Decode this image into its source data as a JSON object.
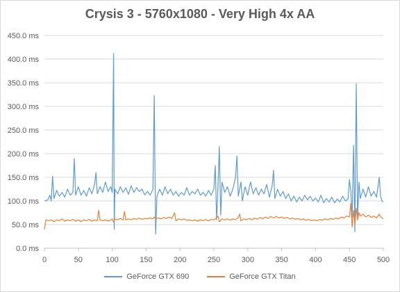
{
  "chart_data": {
    "type": "line",
    "title": "Crysis 3 - 5760x1080 - Very High 4x AA",
    "xlabel": "",
    "ylabel": "",
    "xlim": [
      0,
      500
    ],
    "ylim": [
      0,
      450
    ],
    "x_ticks": [
      0,
      50,
      100,
      150,
      200,
      250,
      300,
      350,
      400,
      450,
      500
    ],
    "y_ticks": [
      0,
      50,
      100,
      150,
      200,
      250,
      300,
      350,
      400,
      450
    ],
    "y_tick_labels": [
      "0.0 ms",
      "50.0 ms",
      "100.0 ms",
      "150.0 ms",
      "200.0 ms",
      "250.0 ms",
      "300.0 ms",
      "350.0 ms",
      "400.0 ms",
      "450.0 ms"
    ],
    "grid": "horizontal",
    "legend_position": "bottom",
    "series": [
      {
        "name": "GeForce GTX 690",
        "color": "#5b9bd5",
        "points": [
          [
            0,
            100
          ],
          [
            5,
            102
          ],
          [
            8,
            112
          ],
          [
            10,
            100
          ],
          [
            12,
            152
          ],
          [
            14,
            105
          ],
          [
            18,
            122
          ],
          [
            22,
            110
          ],
          [
            26,
            118
          ],
          [
            30,
            108
          ],
          [
            34,
            125
          ],
          [
            38,
            112
          ],
          [
            42,
            118
          ],
          [
            44,
            190
          ],
          [
            46,
            112
          ],
          [
            50,
            130
          ],
          [
            54,
            112
          ],
          [
            58,
            122
          ],
          [
            62,
            110
          ],
          [
            66,
            128
          ],
          [
            70,
            115
          ],
          [
            74,
            135
          ],
          [
            76,
            160
          ],
          [
            78,
            115
          ],
          [
            82,
            130
          ],
          [
            86,
            118
          ],
          [
            90,
            140
          ],
          [
            94,
            120
          ],
          [
            98,
            130
          ],
          [
            100,
            118
          ],
          [
            102,
            412
          ],
          [
            103,
            40
          ],
          [
            104,
            125
          ],
          [
            108,
            115
          ],
          [
            112,
            130
          ],
          [
            116,
            118
          ],
          [
            120,
            128
          ],
          [
            124,
            114
          ],
          [
            128,
            132
          ],
          [
            132,
            118
          ],
          [
            136,
            128
          ],
          [
            140,
            120
          ],
          [
            144,
            125
          ],
          [
            148,
            113
          ],
          [
            152,
            120
          ],
          [
            156,
            112
          ],
          [
            160,
            125
          ],
          [
            162,
            323
          ],
          [
            164,
            30
          ],
          [
            166,
            110
          ],
          [
            170,
            125
          ],
          [
            174,
            112
          ],
          [
            178,
            130
          ],
          [
            182,
            115
          ],
          [
            186,
            125
          ],
          [
            190,
            112
          ],
          [
            194,
            120
          ],
          [
            198,
            110
          ],
          [
            202,
            118
          ],
          [
            206,
            112
          ],
          [
            210,
            128
          ],
          [
            214,
            112
          ],
          [
            218,
            120
          ],
          [
            222,
            115
          ],
          [
            226,
            125
          ],
          [
            230,
            112
          ],
          [
            234,
            118
          ],
          [
            238,
            110
          ],
          [
            242,
            122
          ],
          [
            246,
            112
          ],
          [
            250,
            125
          ],
          [
            252,
            175
          ],
          [
            254,
            60
          ],
          [
            256,
            130
          ],
          [
            258,
            215
          ],
          [
            260,
            70
          ],
          [
            262,
            140
          ],
          [
            266,
            118
          ],
          [
            270,
            130
          ],
          [
            274,
            110
          ],
          [
            278,
            125
          ],
          [
            282,
            150
          ],
          [
            284,
            195
          ],
          [
            286,
            110
          ],
          [
            290,
            140
          ],
          [
            292,
            100
          ],
          [
            296,
            130
          ],
          [
            300,
            112
          ],
          [
            304,
            140
          ],
          [
            308,
            115
          ],
          [
            312,
            128
          ],
          [
            316,
            112
          ],
          [
            320,
            125
          ],
          [
            324,
            115
          ],
          [
            328,
            135
          ],
          [
            332,
            108
          ],
          [
            336,
            132
          ],
          [
            338,
            165
          ],
          [
            340,
            105
          ],
          [
            344,
            125
          ],
          [
            348,
            110
          ],
          [
            352,
            120
          ],
          [
            356,
            105
          ],
          [
            360,
            115
          ],
          [
            364,
            100
          ],
          [
            368,
            110
          ],
          [
            372,
            98
          ],
          [
            376,
            108
          ],
          [
            380,
            100
          ],
          [
            384,
            112
          ],
          [
            388,
            102
          ],
          [
            392,
            110
          ],
          [
            396,
            100
          ],
          [
            400,
            106
          ],
          [
            404,
            98
          ],
          [
            408,
            112
          ],
          [
            412,
            96
          ],
          [
            416,
            105
          ],
          [
            420,
            98
          ],
          [
            424,
            108
          ],
          [
            428,
            96
          ],
          [
            432,
            104
          ],
          [
            436,
            98
          ],
          [
            440,
            110
          ],
          [
            444,
            100
          ],
          [
            448,
            104
          ],
          [
            450,
            145
          ],
          [
            452,
            120
          ],
          [
            454,
            65
          ],
          [
            456,
            218
          ],
          [
            458,
            35
          ],
          [
            460,
            348
          ],
          [
            462,
            60
          ],
          [
            464,
            140
          ],
          [
            466,
            105
          ],
          [
            470,
            125
          ],
          [
            474,
            108
          ],
          [
            478,
            130
          ],
          [
            482,
            110
          ],
          [
            486,
            120
          ],
          [
            490,
            108
          ],
          [
            494,
            150
          ],
          [
            496,
            110
          ],
          [
            498,
            100
          ],
          [
            500,
            98
          ]
        ]
      },
      {
        "name": "GeForce GTX Titan",
        "color": "#ed7d31",
        "points": [
          [
            0,
            40
          ],
          [
            2,
            60
          ],
          [
            6,
            58
          ],
          [
            10,
            60
          ],
          [
            14,
            56
          ],
          [
            18,
            60
          ],
          [
            22,
            58
          ],
          [
            26,
            62
          ],
          [
            30,
            57
          ],
          [
            34,
            60
          ],
          [
            38,
            58
          ],
          [
            42,
            61
          ],
          [
            46,
            57
          ],
          [
            50,
            60
          ],
          [
            54,
            56
          ],
          [
            58,
            60
          ],
          [
            62,
            58
          ],
          [
            66,
            61
          ],
          [
            70,
            57
          ],
          [
            74,
            60
          ],
          [
            78,
            58
          ],
          [
            80,
            80
          ],
          [
            82,
            60
          ],
          [
            86,
            58
          ],
          [
            90,
            60
          ],
          [
            94,
            57
          ],
          [
            98,
            60
          ],
          [
            100,
            62
          ],
          [
            102,
            55
          ],
          [
            104,
            62
          ],
          [
            108,
            60
          ],
          [
            112,
            63
          ],
          [
            116,
            60
          ],
          [
            118,
            78
          ],
          [
            120,
            60
          ],
          [
            124,
            62
          ],
          [
            128,
            60
          ],
          [
            132,
            63
          ],
          [
            136,
            61
          ],
          [
            140,
            64
          ],
          [
            144,
            61
          ],
          [
            148,
            63
          ],
          [
            152,
            62
          ],
          [
            156,
            64
          ],
          [
            160,
            62
          ],
          [
            162,
            66
          ],
          [
            164,
            62
          ],
          [
            168,
            64
          ],
          [
            172,
            62
          ],
          [
            176,
            65
          ],
          [
            180,
            63
          ],
          [
            184,
            66
          ],
          [
            188,
            63
          ],
          [
            192,
            75
          ],
          [
            194,
            58
          ],
          [
            198,
            62
          ],
          [
            202,
            60
          ],
          [
            206,
            62
          ],
          [
            210,
            59
          ],
          [
            214,
            60
          ],
          [
            218,
            58
          ],
          [
            222,
            60
          ],
          [
            226,
            57
          ],
          [
            230,
            60
          ],
          [
            234,
            58
          ],
          [
            238,
            61
          ],
          [
            242,
            58
          ],
          [
            246,
            61
          ],
          [
            250,
            60
          ],
          [
            254,
            64
          ],
          [
            256,
            68
          ],
          [
            258,
            56
          ],
          [
            262,
            62
          ],
          [
            266,
            60
          ],
          [
            270,
            62
          ],
          [
            274,
            59
          ],
          [
            278,
            62
          ],
          [
            282,
            60
          ],
          [
            286,
            65
          ],
          [
            288,
            72
          ],
          [
            290,
            58
          ],
          [
            294,
            62
          ],
          [
            298,
            60
          ],
          [
            302,
            63
          ],
          [
            306,
            60
          ],
          [
            310,
            64
          ],
          [
            314,
            61
          ],
          [
            318,
            65
          ],
          [
            322,
            62
          ],
          [
            326,
            66
          ],
          [
            330,
            63
          ],
          [
            334,
            67
          ],
          [
            338,
            64
          ],
          [
            342,
            67
          ],
          [
            346,
            64
          ],
          [
            350,
            66
          ],
          [
            354,
            63
          ],
          [
            358,
            65
          ],
          [
            362,
            62
          ],
          [
            366,
            64
          ],
          [
            370,
            61
          ],
          [
            374,
            63
          ],
          [
            378,
            60
          ],
          [
            382,
            62
          ],
          [
            386,
            59
          ],
          [
            390,
            61
          ],
          [
            394,
            58
          ],
          [
            398,
            60
          ],
          [
            402,
            58
          ],
          [
            406,
            61
          ],
          [
            410,
            59
          ],
          [
            414,
            62
          ],
          [
            418,
            60
          ],
          [
            422,
            63
          ],
          [
            426,
            61
          ],
          [
            430,
            64
          ],
          [
            434,
            62
          ],
          [
            438,
            66
          ],
          [
            442,
            64
          ],
          [
            446,
            68
          ],
          [
            450,
            66
          ],
          [
            452,
            95
          ],
          [
            454,
            45
          ],
          [
            456,
            80
          ],
          [
            458,
            50
          ],
          [
            460,
            85
          ],
          [
            462,
            60
          ],
          [
            464,
            75
          ],
          [
            466,
            68
          ],
          [
            470,
            72
          ],
          [
            474,
            66
          ],
          [
            478,
            70
          ],
          [
            482,
            65
          ],
          [
            486,
            68
          ],
          [
            490,
            64
          ],
          [
            494,
            72
          ],
          [
            496,
            66
          ],
          [
            500,
            62
          ]
        ]
      }
    ]
  }
}
